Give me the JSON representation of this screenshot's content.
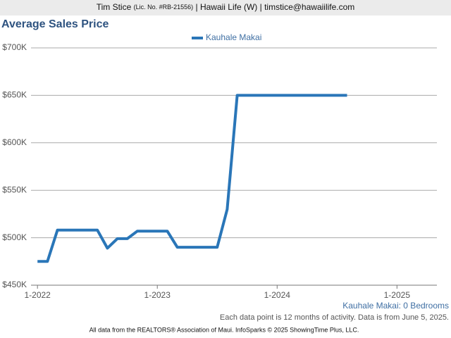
{
  "header": {
    "name": "Tim Stice",
    "license": "(Lic. No. #RB-21556)",
    "rest": "| Hawaii Life (W) | timstice@hawaiilife.com"
  },
  "chart_data": {
    "type": "line",
    "title": "Average Sales Price",
    "x": [
      "2022-01",
      "2022-02",
      "2022-03",
      "2022-04",
      "2022-05",
      "2022-06",
      "2022-07",
      "2022-08",
      "2022-09",
      "2022-10",
      "2022-11",
      "2022-12",
      "2023-01",
      "2023-02",
      "2023-03",
      "2023-04",
      "2023-05",
      "2023-06",
      "2023-07",
      "2023-08",
      "2023-09",
      "2023-10",
      "2023-11",
      "2023-12",
      "2024-01",
      "2024-02",
      "2024-03",
      "2024-04",
      "2024-05",
      "2024-06",
      "2024-07",
      "2024-08"
    ],
    "series": [
      {
        "name": "Kauhale Makai",
        "color": "#2a76b8",
        "values": [
          475000,
          475000,
          508000,
          508000,
          508000,
          508000,
          508000,
          489000,
          499000,
          499000,
          507000,
          507000,
          507000,
          507000,
          490000,
          490000,
          490000,
          490000,
          490000,
          530000,
          650000,
          650000,
          650000,
          650000,
          650000,
          650000,
          650000,
          650000,
          650000,
          650000,
          650000,
          650000
        ]
      }
    ],
    "xlim": [
      "2021-12",
      "2025-05"
    ],
    "xticks": [
      {
        "value": "2022-01",
        "label": "1-2022"
      },
      {
        "value": "2023-01",
        "label": "1-2023"
      },
      {
        "value": "2024-01",
        "label": "1-2024"
      },
      {
        "value": "2025-01",
        "label": "1-2025"
      }
    ],
    "ylim": [
      450000,
      700000
    ],
    "yticks": [
      {
        "value": 450000,
        "label": "$450K"
      },
      {
        "value": 500000,
        "label": "$500K"
      },
      {
        "value": 550000,
        "label": "$550K"
      },
      {
        "value": 600000,
        "label": "$600K"
      },
      {
        "value": 650000,
        "label": "$650K"
      },
      {
        "value": 700000,
        "label": "$700K"
      }
    ],
    "grid": true,
    "legend": "top",
    "subtitle": "Kauhale Makai: 0 Bedrooms",
    "note": "Each data point is 12 months of activity. Data is from June 5, 2025."
  },
  "footer": "All data from the REALTORS® Association of Maui. InfoSparks © 2025 ShowingTime Plus, LLC."
}
